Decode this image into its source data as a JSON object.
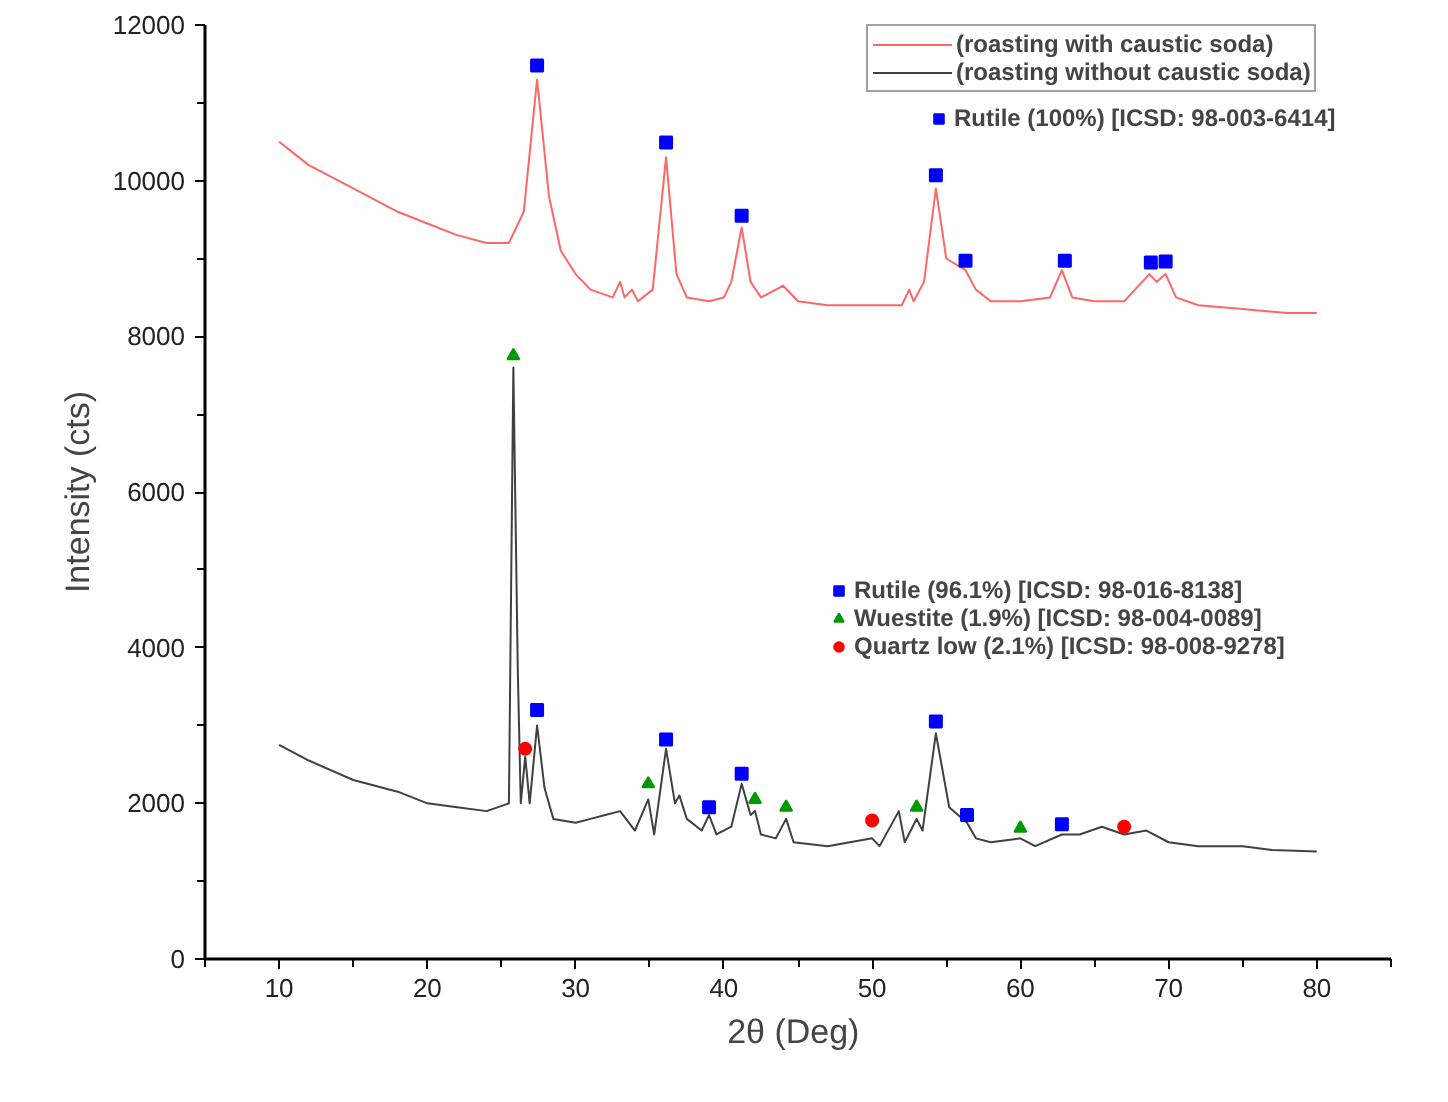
{
  "chart_data": {
    "type": "line",
    "xlabel": "2θ  (Deg)",
    "ylabel": "Intensity (cts)",
    "xlim": [
      5,
      85
    ],
    "ylim": [
      0,
      12000
    ],
    "xticks": [
      {
        "value": 5,
        "label": null
      },
      10,
      {
        "value": 15,
        "label": null
      },
      20,
      {
        "value": 25,
        "label": null
      },
      30,
      {
        "value": 35,
        "label": null
      },
      40,
      {
        "value": 45,
        "label": null
      },
      50,
      {
        "value": 55,
        "label": null
      },
      60,
      {
        "value": 65,
        "label": null
      },
      70,
      {
        "value": 75,
        "label": null
      },
      80,
      {
        "value": 85,
        "label": null
      }
    ],
    "yticks": [
      0,
      {
        "value": 1000,
        "label": null
      },
      2000,
      {
        "value": 3000,
        "label": null
      },
      4000,
      {
        "value": 5000,
        "label": null
      },
      6000,
      {
        "value": 7000,
        "label": null
      },
      8000,
      {
        "value": 9000,
        "label": null
      },
      10000,
      {
        "value": 11000,
        "label": null
      },
      12000
    ],
    "legend": "top right",
    "series": [
      {
        "name": "(roasting with caustic soda)",
        "color": "#ff6666",
        "x": [
          10,
          12,
          15,
          18,
          20,
          22,
          24,
          25.5,
          26.5,
          27.4,
          28.2,
          29,
          30,
          31,
          32.5,
          33,
          33.3,
          33.8,
          34.2,
          35.2,
          36.1,
          36.8,
          37.5,
          39,
          40,
          40.5,
          41.2,
          41.8,
          42.5,
          43.5,
          44,
          45,
          47,
          50,
          52,
          52.5,
          52.8,
          53.5,
          54.3,
          55,
          56.3,
          57,
          58,
          60,
          62,
          62.8,
          63.5,
          65,
          67,
          68.7,
          69.2,
          69.8,
          70.5,
          72,
          75,
          78,
          80
        ],
        "values": [
          10500,
          10200,
          9900,
          9600,
          9450,
          9300,
          9200,
          9200,
          9600,
          11300,
          9800,
          9100,
          8800,
          8600,
          8500,
          8700,
          8500,
          8600,
          8450,
          8600,
          10300,
          8800,
          8500,
          8450,
          8500,
          8700,
          9400,
          8700,
          8500,
          8600,
          8650,
          8450,
          8400,
          8400,
          8400,
          8600,
          8450,
          8700,
          9900,
          9000,
          8850,
          8600,
          8450,
          8450,
          8500,
          8850,
          8500,
          8450,
          8450,
          8800,
          8700,
          8800,
          8500,
          8400,
          8350,
          8300,
          8300
        ]
      },
      {
        "name": "(roasting without caustic soda)",
        "color": "#404040",
        "x": [
          10,
          12,
          15,
          18,
          20,
          22,
          24,
          25.5,
          25.8,
          26.1,
          26.3,
          26.6,
          26.9,
          27.1,
          27.4,
          27.9,
          28.5,
          30,
          31,
          32,
          33,
          34,
          34.9,
          35.3,
          36.1,
          36.7,
          37,
          37.5,
          38.5,
          39,
          39.5,
          40.5,
          41.2,
          41.8,
          42.1,
          42.5,
          43.5,
          44.2,
          44.7,
          47,
          50,
          50.5,
          51.8,
          52.2,
          53,
          53.4,
          54.3,
          55.2,
          56.4,
          57,
          58,
          60,
          61,
          62.8,
          64,
          65.5,
          67,
          68.5,
          70,
          72,
          75,
          77,
          80
        ],
        "values": [
          2750,
          2550,
          2300,
          2150,
          2000,
          1950,
          1900,
          2000,
          7600,
          3700,
          2000,
          2600,
          2000,
          2400,
          3000,
          2200,
          1800,
          1750,
          1800,
          1850,
          1900,
          1650,
          2050,
          1600,
          2700,
          2000,
          2100,
          1800,
          1650,
          1850,
          1600,
          1700,
          2250,
          1850,
          1900,
          1600,
          1550,
          1800,
          1500,
          1450,
          1550,
          1450,
          1900,
          1500,
          1800,
          1650,
          2900,
          1950,
          1750,
          1550,
          1500,
          1550,
          1450,
          1600,
          1600,
          1700,
          1600,
          1650,
          1500,
          1450,
          1450,
          1400,
          1380
        ]
      },
      {
        "name": "Rutile (100%) [ICSD: 98-003-6414]",
        "type": "scatter",
        "marker": "square",
        "color": "#0000ff",
        "x": [
          27.4,
          36.1,
          41.2,
          54.3,
          56.3,
          63,
          68.8,
          69.8
        ],
        "values": [
          11480,
          10490,
          9550,
          10070,
          8970,
          8970,
          8950,
          8960
        ]
      },
      {
        "name": "Rutile (96.1%) [ICSD: 98-016-8138]",
        "type": "scatter",
        "marker": "square",
        "color": "#0000ff",
        "x": [
          27.4,
          36.1,
          39,
          41.2,
          54.3,
          56.4,
          62.8
        ],
        "values": [
          3200,
          2820,
          1950,
          2380,
          3050,
          1850,
          1730
        ]
      },
      {
        "name": "Wuestite (1.9%) [ICSD: 98-004-0089]",
        "type": "scatter",
        "marker": "triangle",
        "color": "#009900",
        "x": [
          25.8,
          34.9,
          42.1,
          44.2,
          53,
          60
        ],
        "values": [
          7750,
          2250,
          2050,
          1950,
          1950,
          1680
        ]
      },
      {
        "name": "Quartz low (2.1%) [ICSD: 98-008-9278]",
        "type": "scatter",
        "marker": "circle",
        "color": "#ff0000",
        "x": [
          26.6,
          50,
          67
        ],
        "values": [
          2700,
          1780,
          1700
        ]
      }
    ]
  }
}
